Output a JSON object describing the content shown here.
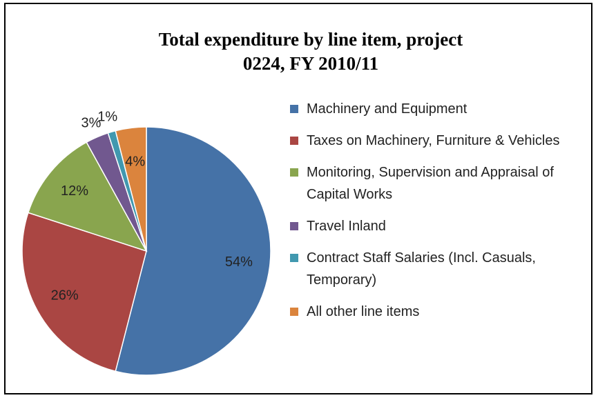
{
  "chart_data": {
    "type": "pie",
    "title": "Total expenditure by line item, project 0224, FY 2010/11",
    "categories": [
      "Machinery and Equipment",
      "Taxes on Machinery, Furniture & Vehicles",
      "Monitoring, Supervision and Appraisal of Capital Works",
      "Travel Inland",
      "Contract Staff Salaries (Incl. Casuals, Temporary)",
      "All other line items"
    ],
    "values": [
      54,
      26,
      12,
      3,
      1,
      4
    ],
    "value_labels": [
      "54%",
      "26%",
      "12%",
      "3%",
      "1%",
      "4%"
    ],
    "colors": [
      "#4572a7",
      "#aa4643",
      "#89a54e",
      "#71588f",
      "#4198af",
      "#db843d"
    ],
    "legend": "right"
  }
}
